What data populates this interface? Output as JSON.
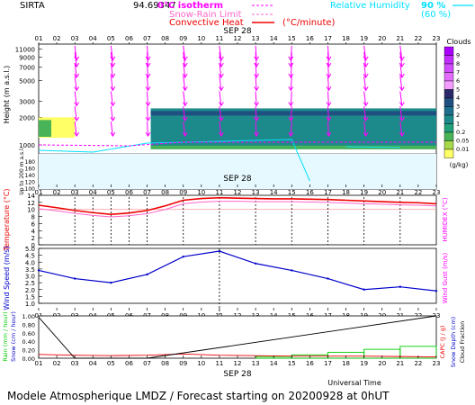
{
  "header": {
    "station": "SIRTA",
    "coords": "94.69347",
    "legend_isotherm": "0°C isotherm",
    "legend_snow_rain": "Snow-Rain Limit",
    "legend_conv_heat": "Convective Heat",
    "legend_conv_unit": "(°C/minute)",
    "legend_rh": "Relative Humidity",
    "rh_90": "90 %",
    "rh_60": "(60 %)"
  },
  "footer": {
    "text": "Modele Atmospherique LMDZ / Forecast starting on 20200928 at 0hUT"
  },
  "colors": {
    "red": "#ee0000",
    "magenta": "#ff00ff",
    "cyan": "#00e0ff",
    "blue": "#0000cc",
    "green": "#00cc00",
    "pink": "#ff66cc",
    "black": "#000000"
  },
  "chart_data": [
    {
      "type": "heatmap",
      "panel": "clouds-wind",
      "date_label": "SEP 28",
      "hours": [
        "01",
        "02",
        "03",
        "04",
        "05",
        "06",
        "07",
        "08",
        "09",
        "10",
        "11",
        "12",
        "13",
        "14",
        "15",
        "16",
        "17",
        "18",
        "19",
        "20",
        "21",
        "22",
        "23"
      ],
      "ylabel": "Height (m a.s.l.)",
      "ylabel_low": "Up to 200 m a.s.l.",
      "y_ticks_upper": [
        {
          "v": 11000,
          "label": "11000"
        },
        {
          "v": 9000,
          "label": "9000"
        },
        {
          "v": 7000,
          "label": "7000"
        },
        {
          "v": 5000,
          "label": "5000"
        },
        {
          "v": 3000,
          "label": "3000"
        },
        {
          "v": 2000,
          "label": "2000"
        },
        {
          "v": 1000,
          "label": "1000"
        }
      ],
      "y_ticks_lower": [
        "180",
        "160",
        "140",
        "120",
        "100"
      ],
      "cloud_legend_title": "Clouds",
      "cloud_legend_unit": "(g/kg)",
      "cloud_legend": [
        {
          "label": "9",
          "color": "#a900ff"
        },
        {
          "label": "8",
          "color": "#c12cff"
        },
        {
          "label": "7",
          "color": "#d14cff"
        },
        {
          "label": "6",
          "color": "#e36cff"
        },
        {
          "label": "5",
          "color": "#f49cff"
        },
        {
          "label": "4",
          "color": "#2a2a6a"
        },
        {
          "label": "3",
          "color": "#204f82"
        },
        {
          "label": "2",
          "color": "#1e6f8e"
        },
        {
          "label": "1",
          "color": "#1c8a8a"
        },
        {
          "label": "0.2",
          "color": "#22a07a"
        },
        {
          "label": "0.05",
          "color": "#49b457"
        },
        {
          "label": "0.01",
          "color": "#a6d84a"
        },
        {
          "label": "",
          "color": "#ffff66"
        }
      ],
      "cloud_layer": {
        "start_hour": 7.2,
        "end_hour": 23,
        "base_m": 900,
        "top_m": 2500,
        "early_base_m": 1200,
        "early_top_m": 2000,
        "early_start_hour": 1,
        "early_end_hour": 3
      },
      "wind_columns": [
        {
          "h": 3,
          "dx": 1,
          "dy": 3
        },
        {
          "h": 5,
          "dx": 1,
          "dy": 3
        },
        {
          "h": 7,
          "dx": 0.5,
          "dy": 3
        },
        {
          "h": 9,
          "dx": 1,
          "dy": 3
        },
        {
          "h": 11,
          "dx": 1,
          "dy": 3
        },
        {
          "h": 13,
          "dx": 0.5,
          "dy": 3
        },
        {
          "h": 15,
          "dx": -0.5,
          "dy": 3
        },
        {
          "h": 17,
          "dx": 0.5,
          "dy": 3
        },
        {
          "h": 19,
          "dx": 1,
          "dy": 3
        },
        {
          "h": 21,
          "dx": 1,
          "dy": 3
        }
      ],
      "wind_levels_m": [
        10000,
        8500,
        6500,
        4700,
        3200,
        2200,
        1500
      ]
    },
    {
      "type": "line",
      "panel": "temperature",
      "date_label": "SEP 28",
      "ylabel": "Temperature (°C)",
      "ylabel_right": "HUMIDEX (°C)",
      "ylim": [
        0,
        14
      ],
      "y_ticks": [
        0,
        2,
        4,
        6,
        8,
        10,
        12,
        14
      ],
      "x": [
        1,
        2,
        3,
        4,
        5,
        6,
        7,
        8,
        9,
        10,
        11,
        12,
        13,
        14,
        15,
        16,
        17,
        18,
        19,
        20,
        21,
        22,
        23
      ],
      "series": [
        {
          "color": "red",
          "values": [
            11.2,
            10.5,
            9.7,
            9.1,
            8.6,
            9.0,
            9.7,
            11.0,
            12.6,
            13.1,
            13.3,
            13.2,
            13.1,
            13.0,
            13.0,
            12.9,
            12.8,
            12.6,
            12.4,
            12.2,
            12.0,
            11.9,
            11.6
          ]
        },
        {
          "color": "pink",
          "values": [
            10.2,
            9.6,
            8.9,
            8.3,
            7.9,
            8.2,
            8.8,
            10.0,
            11.6,
            12.1,
            12.3,
            12.3,
            12.2,
            12.2,
            12.2,
            12.1,
            12.0,
            11.8,
            11.6,
            11.5,
            11.3,
            11.2,
            11.0
          ]
        }
      ],
      "ref_line": 10
    },
    {
      "type": "line",
      "panel": "wind",
      "date_label": "SEP 28",
      "ylabel": "Wind Speed (m/s)",
      "ylabel_right": "Wind Gust (m/s)",
      "ylim": [
        1,
        5
      ],
      "y_ticks": [
        1.0,
        1.5,
        2.0,
        2.5,
        3.0,
        3.5,
        4.0,
        4.5,
        5.0
      ],
      "x": [
        1,
        3,
        5,
        7,
        9,
        11,
        13,
        15,
        17,
        19,
        21,
        23
      ],
      "series": [
        {
          "color": "blue",
          "values": [
            3.4,
            2.8,
            2.5,
            3.1,
            4.4,
            4.8,
            3.9,
            3.4,
            2.8,
            2.0,
            2.2,
            1.9
          ]
        }
      ]
    },
    {
      "type": "bar",
      "panel": "precip",
      "date_label": "SEP 28",
      "ylabel_rain": "Rain (mm / hour)",
      "ylabel_snow": "Snow (cm / hour)",
      "ylabel_right_capc": "CAPC (J / g)",
      "ylabel_right_snow": "Snow Depth (cm)",
      "ylabel_right_cloud": "Cloud Fraction",
      "ylim": [
        0,
        1
      ],
      "y_ticks": [
        "0.00",
        "0.20",
        "0.40",
        "0.60",
        "0.80",
        "1.00"
      ],
      "cloud_fraction": {
        "x": [
          1,
          3,
          7,
          23
        ],
        "values": [
          0.97,
          0.0,
          0.0,
          1.0
        ]
      },
      "capc": {
        "x": [
          1,
          3,
          5,
          7,
          9,
          11,
          13,
          15,
          17,
          19,
          21,
          23
        ],
        "values": [
          0.09,
          0.07,
          0.06,
          0.07,
          0.1,
          0.07,
          0.06,
          0.05,
          0.05,
          0.05,
          0.04,
          0.03
        ]
      },
      "rain_bars": [
        {
          "from": 13,
          "to": 15,
          "value": 0.04
        },
        {
          "from": 15,
          "to": 17,
          "value": 0.08
        },
        {
          "from": 17,
          "to": 19,
          "value": 0.14
        },
        {
          "from": 19,
          "to": 21,
          "value": 0.21
        },
        {
          "from": 21,
          "to": 23,
          "value": 0.28
        }
      ],
      "xlabel": "Universal Time"
    }
  ]
}
